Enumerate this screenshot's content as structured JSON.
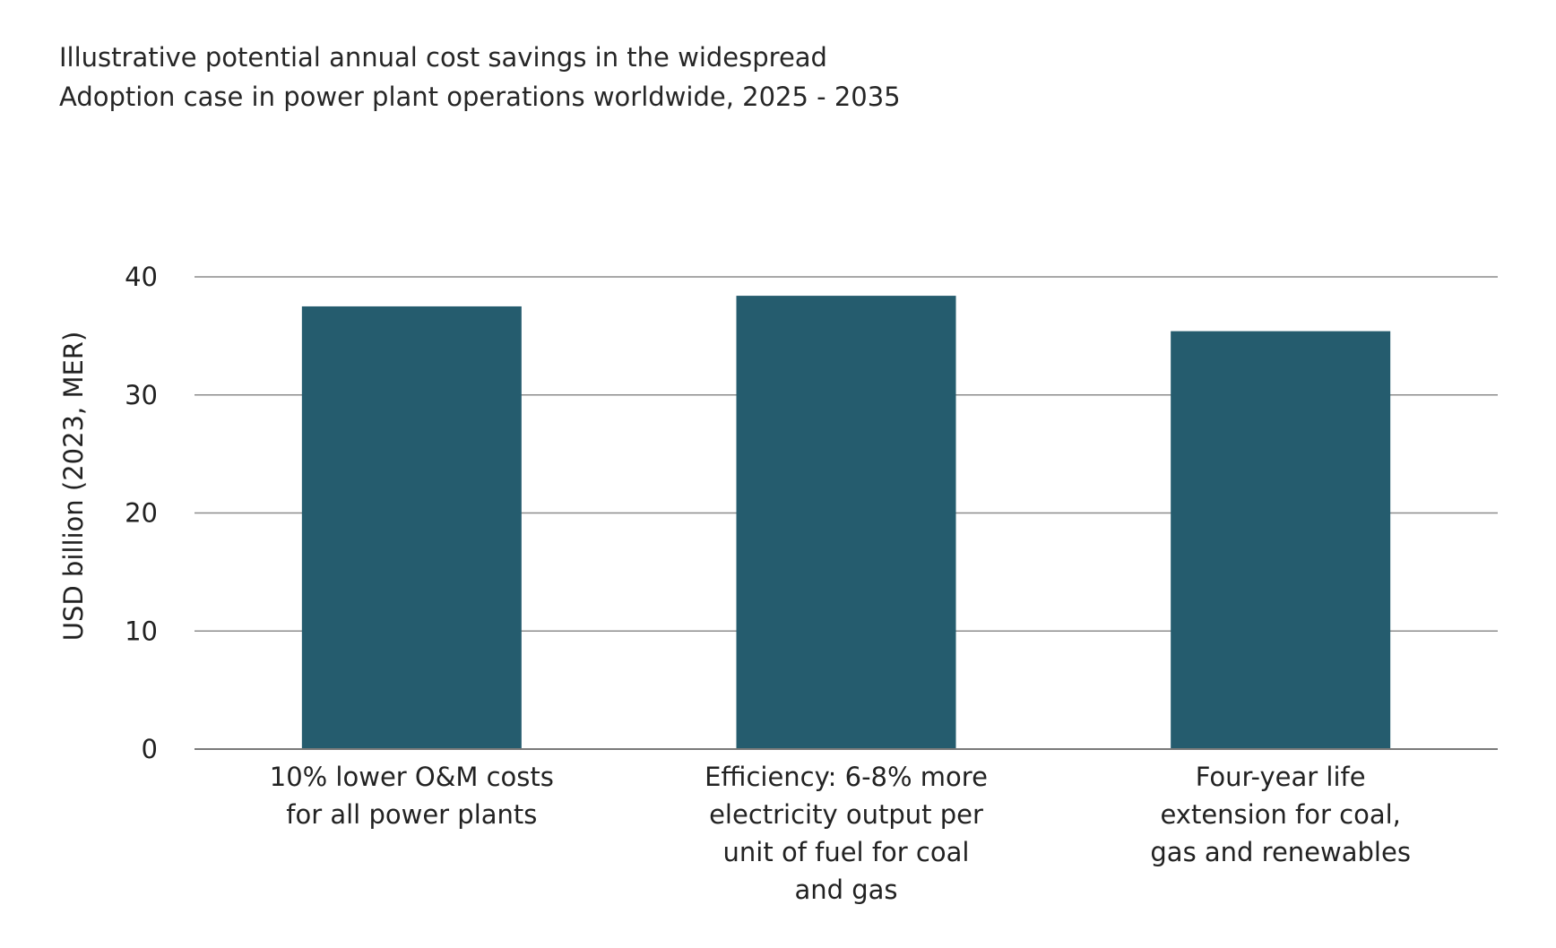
{
  "chart_data": {
    "type": "bar",
    "title": [
      "Illustrative potential annual cost savings in the widespread",
      "Adoption case in power plant operations worldwide, 2025 - 2035"
    ],
    "xlabel": "",
    "ylabel": "USD billion (2023, MER)",
    "ylim": [
      0,
      40
    ],
    "yticks": [
      "0",
      "10",
      "20",
      "30",
      "40"
    ],
    "grid": true,
    "categories": [
      [
        "10% lower O&M costs",
        "for all power plants"
      ],
      [
        "Efficiency: 6-8% more",
        "electricity output per",
        "unit of fuel for coal",
        "and gas"
      ],
      [
        "Four-year life",
        "extension for coal,",
        "gas and renewables"
      ]
    ],
    "values": [
      37.5,
      38.4,
      35.4
    ],
    "bar_color": "#255c6e",
    "grid_color": "#8c8c8c"
  }
}
